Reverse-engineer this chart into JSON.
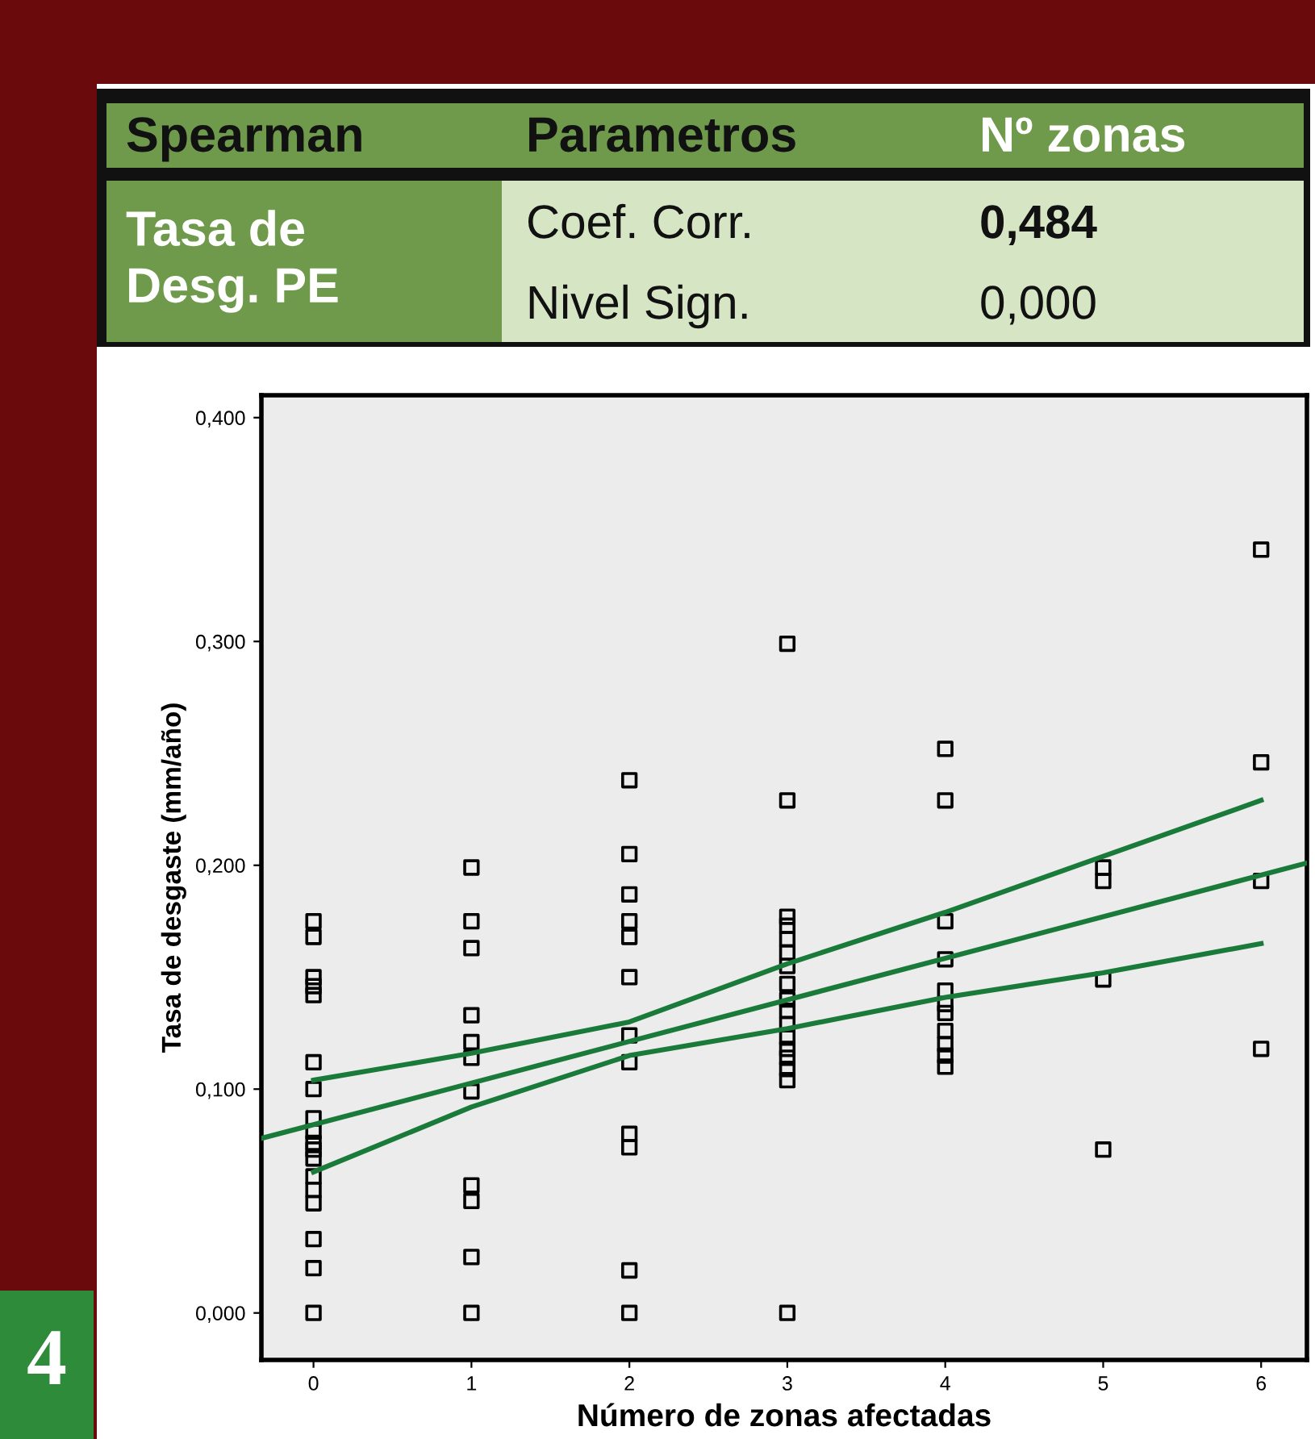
{
  "chart_data": {
    "type": "scatter",
    "xlabel": "Número de zonas afectadas",
    "ylabel": "Tasa de desgaste (mm/año)",
    "xlim": [
      -0.33,
      6.29
    ],
    "ylim": [
      -0.021,
      0.41
    ],
    "xticks": [
      0,
      1,
      2,
      3,
      4,
      5,
      6
    ],
    "yticks": [
      {
        "value": 0,
        "label": "0,000"
      },
      {
        "value": 0.1,
        "label": "0,100"
      },
      {
        "value": 0.2,
        "label": "0,200"
      },
      {
        "value": 0.3,
        "label": "0,300"
      },
      {
        "value": 0.4,
        "label": "0,400"
      }
    ],
    "grid": false,
    "legend": false,
    "series": [
      {
        "marker": "square",
        "color": "#000000",
        "x": [
          0,
          0,
          0,
          0,
          0,
          0,
          0,
          0,
          0,
          0,
          0,
          0,
          0,
          0,
          0,
          0,
          0,
          0,
          1,
          1,
          1,
          1,
          1,
          1,
          1,
          1,
          1,
          1,
          1,
          2,
          2,
          2,
          2,
          2,
          2,
          2,
          2,
          2,
          2,
          2,
          2,
          3,
          3,
          3,
          3,
          3,
          3,
          3,
          3,
          3,
          3,
          3,
          3,
          3,
          3,
          3,
          3,
          3,
          4,
          4,
          4,
          4,
          4,
          4,
          4,
          4,
          4,
          4,
          4,
          5,
          5,
          5,
          5,
          6,
          6,
          6,
          6
        ],
        "values": [
          0.175,
          0.168,
          0.15,
          0.146,
          0.142,
          0.112,
          0.1,
          0.087,
          0.081,
          0.076,
          0.073,
          0.069,
          0.061,
          0.055,
          0.049,
          0.033,
          0.02,
          0.0,
          0.199,
          0.175,
          0.163,
          0.133,
          0.121,
          0.114,
          0.099,
          0.057,
          0.05,
          0.025,
          0.0,
          0.238,
          0.205,
          0.187,
          0.175,
          0.168,
          0.15,
          0.124,
          0.112,
          0.08,
          0.074,
          0.019,
          0.0,
          0.299,
          0.229,
          0.177,
          0.173,
          0.167,
          0.161,
          0.155,
          0.147,
          0.14,
          0.135,
          0.129,
          0.123,
          0.118,
          0.114,
          0.109,
          0.104,
          0.0,
          0.252,
          0.229,
          0.175,
          0.158,
          0.144,
          0.138,
          0.134,
          0.126,
          0.12,
          0.115,
          0.11,
          0.199,
          0.193,
          0.149,
          0.073,
          0.341,
          0.246,
          0.193,
          0.118
        ]
      },
      {
        "type": "line",
        "color": "#1a7a3a",
        "x": [
          -0.33,
          6.29
        ],
        "values": [
          0.078,
          0.201
        ]
      },
      {
        "type": "line",
        "color": "#1a7a3a",
        "x": [
          0,
          1,
          2,
          3,
          4,
          5,
          6
        ],
        "values": [
          0.104,
          0.116,
          0.13,
          0.156,
          0.179,
          0.204,
          0.229
        ]
      },
      {
        "type": "line",
        "color": "#1a7a3a",
        "x": [
          0,
          1,
          2,
          3,
          4,
          5,
          6
        ],
        "values": [
          0.063,
          0.092,
          0.115,
          0.127,
          0.141,
          0.152,
          0.165
        ]
      }
    ],
    "annotations": [
      "Spearman",
      "Parametros",
      "Nº zonas",
      "Tasa de\nDesg. PE",
      "Coef. Corr.",
      "0,484",
      "Nivel Sign.",
      "0,000",
      "4"
    ]
  }
}
